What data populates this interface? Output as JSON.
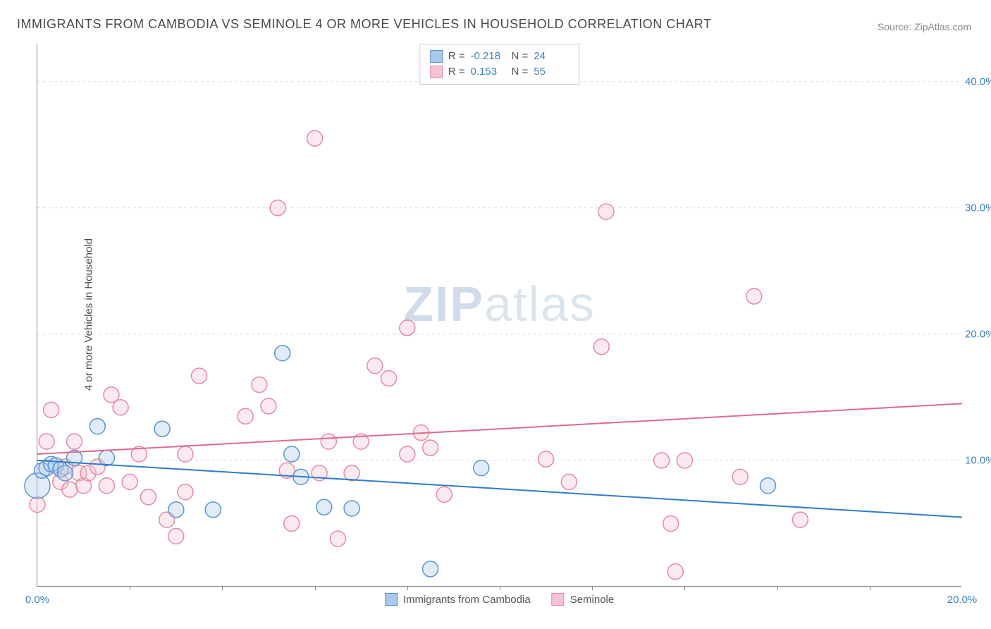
{
  "title": "IMMIGRANTS FROM CAMBODIA VS SEMINOLE 4 OR MORE VEHICLES IN HOUSEHOLD CORRELATION CHART",
  "source": "Source: ZipAtlas.com",
  "ylabel": "4 or more Vehicles in Household",
  "watermark_a": "ZIP",
  "watermark_b": "atlas",
  "chart": {
    "type": "scatter",
    "xlim": [
      0,
      20
    ],
    "ylim": [
      0,
      43
    ],
    "x_ticks": [
      0.0,
      20.0
    ],
    "x_tick_labels": [
      "0.0%",
      "20.0%"
    ],
    "x_minor_ticks": [
      2,
      4,
      6,
      8,
      10,
      12,
      14,
      16,
      18
    ],
    "y_ticks": [
      10.0,
      20.0,
      30.0,
      40.0
    ],
    "y_tick_labels": [
      "10.0%",
      "20.0%",
      "30.0%",
      "40.0%"
    ],
    "grid_color": "#dddddd",
    "axis_color": "#888888",
    "tick_label_color": "#3b82c4",
    "background_color": "#ffffff",
    "marker_radius": 11,
    "marker_stroke_width": 1.5,
    "marker_fill_opacity": 0.35,
    "line_width": 2,
    "series": [
      {
        "name": "Immigrants from Cambodia",
        "color_stroke": "#5a95d6",
        "color_fill": "#a9c8ea",
        "line_color": "#2e7cd1",
        "R": "-0.218",
        "N": "24",
        "trend": {
          "x1": 0.0,
          "y1": 10.0,
          "x2": 20.0,
          "y2": 5.5
        },
        "points": [
          {
            "x": 0.0,
            "y": 8.0,
            "r": 18
          },
          {
            "x": 0.1,
            "y": 9.2
          },
          {
            "x": 0.2,
            "y": 9.4
          },
          {
            "x": 0.3,
            "y": 9.7
          },
          {
            "x": 0.4,
            "y": 9.6
          },
          {
            "x": 0.5,
            "y": 9.3
          },
          {
            "x": 0.6,
            "y": 9.0
          },
          {
            "x": 0.8,
            "y": 10.2
          },
          {
            "x": 1.3,
            "y": 12.7
          },
          {
            "x": 1.5,
            "y": 10.2
          },
          {
            "x": 2.7,
            "y": 12.5
          },
          {
            "x": 3.0,
            "y": 6.1
          },
          {
            "x": 3.8,
            "y": 6.1
          },
          {
            "x": 5.3,
            "y": 18.5
          },
          {
            "x": 5.5,
            "y": 10.5
          },
          {
            "x": 5.7,
            "y": 8.7
          },
          {
            "x": 6.2,
            "y": 6.3
          },
          {
            "x": 6.8,
            "y": 6.2
          },
          {
            "x": 8.5,
            "y": 1.4
          },
          {
            "x": 9.6,
            "y": 9.4
          },
          {
            "x": 15.8,
            "y": 8.0
          }
        ]
      },
      {
        "name": "Seminole",
        "color_stroke": "#e68aa3",
        "color_fill": "#f6c3d1",
        "line_color": "#e26a8d",
        "R": "0.153",
        "N": "55",
        "trend": {
          "x1": 0.0,
          "y1": 10.5,
          "x2": 20.0,
          "y2": 14.5
        },
        "points": [
          {
            "x": 0.0,
            "y": 6.5
          },
          {
            "x": 0.2,
            "y": 11.5
          },
          {
            "x": 0.3,
            "y": 14.0
          },
          {
            "x": 0.5,
            "y": 8.3
          },
          {
            "x": 0.6,
            "y": 9.5
          },
          {
            "x": 0.7,
            "y": 7.7
          },
          {
            "x": 0.8,
            "y": 11.5
          },
          {
            "x": 0.9,
            "y": 9.0
          },
          {
            "x": 1.0,
            "y": 8.0
          },
          {
            "x": 1.1,
            "y": 9.0
          },
          {
            "x": 1.3,
            "y": 9.5
          },
          {
            "x": 1.5,
            "y": 8.0
          },
          {
            "x": 1.6,
            "y": 15.2
          },
          {
            "x": 1.8,
            "y": 14.2
          },
          {
            "x": 2.0,
            "y": 8.3
          },
          {
            "x": 2.2,
            "y": 10.5
          },
          {
            "x": 2.4,
            "y": 7.1
          },
          {
            "x": 2.8,
            "y": 5.3
          },
          {
            "x": 3.0,
            "y": 4.0
          },
          {
            "x": 3.2,
            "y": 7.5
          },
          {
            "x": 3.2,
            "y": 10.5
          },
          {
            "x": 3.5,
            "y": 16.7
          },
          {
            "x": 4.5,
            "y": 13.5
          },
          {
            "x": 4.8,
            "y": 16.0
          },
          {
            "x": 5.0,
            "y": 14.3
          },
          {
            "x": 5.2,
            "y": 30.0
          },
          {
            "x": 5.4,
            "y": 9.2
          },
          {
            "x": 5.5,
            "y": 5.0
          },
          {
            "x": 6.0,
            "y": 35.5
          },
          {
            "x": 6.1,
            "y": 9.0
          },
          {
            "x": 6.3,
            "y": 11.5
          },
          {
            "x": 6.5,
            "y": 3.8
          },
          {
            "x": 6.8,
            "y": 9.0
          },
          {
            "x": 7.0,
            "y": 11.5
          },
          {
            "x": 7.3,
            "y": 17.5
          },
          {
            "x": 7.6,
            "y": 16.5
          },
          {
            "x": 8.0,
            "y": 10.5
          },
          {
            "x": 8.0,
            "y": 20.5
          },
          {
            "x": 8.3,
            "y": 12.2
          },
          {
            "x": 8.5,
            "y": 11.0
          },
          {
            "x": 8.8,
            "y": 7.3
          },
          {
            "x": 11.0,
            "y": 10.1
          },
          {
            "x": 11.5,
            "y": 8.3
          },
          {
            "x": 12.2,
            "y": 19.0
          },
          {
            "x": 12.3,
            "y": 29.7
          },
          {
            "x": 13.5,
            "y": 10.0
          },
          {
            "x": 13.7,
            "y": 5.0
          },
          {
            "x": 13.8,
            "y": 1.2
          },
          {
            "x": 14.0,
            "y": 10.0
          },
          {
            "x": 15.2,
            "y": 8.7
          },
          {
            "x": 15.5,
            "y": 23.0
          },
          {
            "x": 16.5,
            "y": 5.3
          }
        ]
      }
    ]
  },
  "legend": {
    "swatch_size": 18,
    "stats_labels": {
      "R": "R =",
      "N": "N ="
    }
  }
}
